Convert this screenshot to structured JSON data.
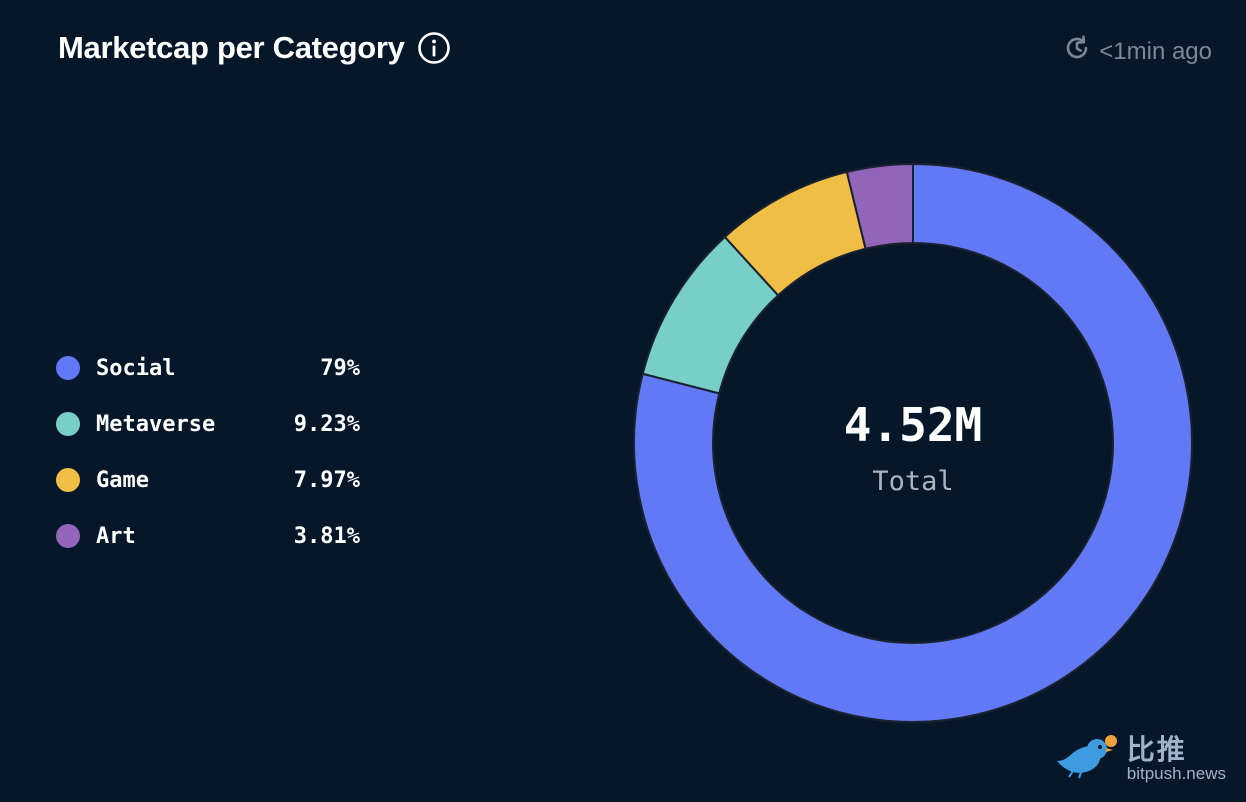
{
  "header": {
    "title": "Marketcap per Category",
    "info_icon": "info-icon",
    "updated_icon": "clock-refresh-icon",
    "updated_text": "<1min ago"
  },
  "chart_data": {
    "type": "pie",
    "donut": true,
    "title": "Marketcap per Category",
    "center_value": "4.52M",
    "center_label": "Total",
    "legend_placement": "left",
    "slices": [
      {
        "label": "Social",
        "value_text": "79%",
        "value": 79,
        "color": "#6279f6"
      },
      {
        "label": "Metaverse",
        "value_text": "9.23%",
        "value": 9.23,
        "color": "#77cfc7"
      },
      {
        "label": "Game",
        "value_text": "7.97%",
        "value": 7.97,
        "color": "#f0be45"
      },
      {
        "label": "Art",
        "value_text": "3.81%",
        "value": 3.81,
        "color": "#9165b8"
      }
    ]
  },
  "watermark": {
    "cn_text": "比推",
    "url_text": "bitpush.news",
    "logo_icon": "bird-logo-icon"
  }
}
